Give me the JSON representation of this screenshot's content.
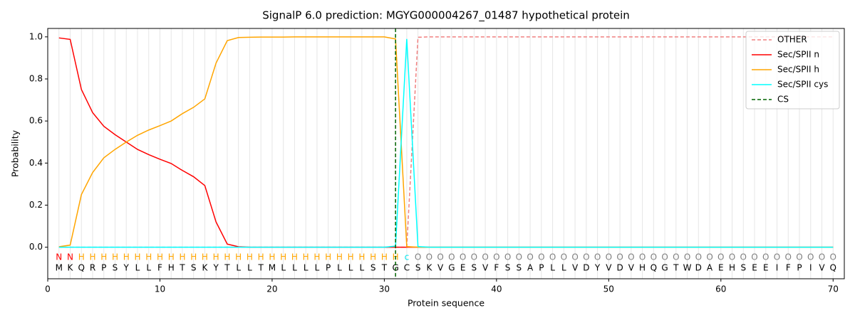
{
  "chart_data": {
    "type": "line",
    "title": "SignalP 6.0 prediction: MGYG000004267_01487 hypothetical protein",
    "x_label": "Protein sequence",
    "y_label": "Probability",
    "x": [
      1,
      2,
      3,
      4,
      5,
      6,
      7,
      8,
      9,
      10,
      11,
      12,
      13,
      14,
      15,
      16,
      17,
      18,
      19,
      20,
      21,
      22,
      23,
      24,
      25,
      26,
      27,
      28,
      29,
      30,
      31,
      32,
      33,
      34,
      35,
      36,
      37,
      38,
      39,
      40,
      41,
      42,
      43,
      44,
      45,
      46,
      47,
      48,
      49,
      50,
      51,
      52,
      53,
      54,
      55,
      56,
      57,
      58,
      59,
      60,
      61,
      62,
      63,
      64,
      65,
      66,
      67,
      68,
      69,
      70
    ],
    "sequence": [
      "M",
      "K",
      "Q",
      "R",
      "P",
      "S",
      "Y",
      "L",
      "L",
      "F",
      "H",
      "T",
      "S",
      "K",
      "Y",
      "T",
      "L",
      "L",
      "T",
      "M",
      "L",
      "L",
      "L",
      "L",
      "P",
      "L",
      "L",
      "L",
      "S",
      "T",
      "G",
      "C",
      "S",
      "K",
      "V",
      "G",
      "E",
      "S",
      "V",
      "F",
      "S",
      "S",
      "A",
      "P",
      "L",
      "L",
      "V",
      "D",
      "Y",
      "V",
      "D",
      "V",
      "H",
      "Q",
      "G",
      "T",
      "W",
      "D",
      "A",
      "E",
      "H",
      "S",
      "E",
      "E",
      "I",
      "F",
      "P",
      "I",
      "V",
      "Q"
    ],
    "region_labels": [
      "N",
      "N",
      "H",
      "H",
      "H",
      "H",
      "H",
      "H",
      "H",
      "H",
      "H",
      "H",
      "H",
      "H",
      "H",
      "H",
      "H",
      "H",
      "H",
      "H",
      "H",
      "H",
      "H",
      "H",
      "H",
      "H",
      "H",
      "H",
      "H",
      "H",
      "H",
      "c",
      "O",
      "O",
      "O",
      "O",
      "O",
      "O",
      "O",
      "O",
      "O",
      "O",
      "O",
      "O",
      "O",
      "O",
      "O",
      "O",
      "O",
      "O",
      "O",
      "O",
      "O",
      "O",
      "O",
      "O",
      "O",
      "O",
      "O",
      "O",
      "O",
      "O",
      "O",
      "O",
      "O",
      "O",
      "O",
      "O",
      "O",
      "O"
    ],
    "region_colors": {
      "N": "#ff0000",
      "H": "#ffa500",
      "c": "#00e5ee",
      "O": "#808080"
    },
    "series": [
      {
        "name": "OTHER",
        "color": "#f08080",
        "dash": true,
        "values": [
          0,
          0,
          0,
          0,
          0,
          0,
          0,
          0,
          0,
          0,
          0,
          0,
          0,
          0,
          0,
          0,
          0,
          0,
          0,
          0,
          0,
          0,
          0,
          0,
          0,
          0,
          0,
          0,
          0,
          0,
          0,
          0,
          0.998,
          1,
          1,
          1,
          1,
          1,
          1,
          1,
          1,
          1,
          1,
          1,
          1,
          1,
          1,
          1,
          1,
          1,
          1,
          1,
          1,
          1,
          1,
          1,
          1,
          1,
          1,
          1,
          1,
          1,
          1,
          1,
          1,
          1,
          1,
          1,
          1,
          1
        ]
      },
      {
        "name": "Sec/SPII n",
        "color": "#ff0000",
        "values": [
          0.995,
          0.988,
          0.75,
          0.64,
          0.575,
          0.535,
          0.5,
          0.465,
          0.44,
          0.418,
          0.398,
          0.365,
          0.335,
          0.293,
          0.12,
          0.015,
          0.002,
          0,
          0,
          0,
          0,
          0,
          0,
          0,
          0,
          0,
          0,
          0,
          0,
          0,
          0,
          0,
          0,
          0,
          0,
          0,
          0,
          0,
          0,
          0,
          0,
          0,
          0,
          0,
          0,
          0,
          0,
          0,
          0,
          0,
          0,
          0,
          0,
          0,
          0,
          0,
          0,
          0,
          0,
          0,
          0,
          0,
          0,
          0,
          0,
          0,
          0,
          0,
          0,
          0
        ]
      },
      {
        "name": "Sec/SPII h",
        "color": "#ffa500",
        "values": [
          0.002,
          0.01,
          0.25,
          0.355,
          0.425,
          0.465,
          0.5,
          0.532,
          0.557,
          0.578,
          0.6,
          0.635,
          0.665,
          0.705,
          0.875,
          0.982,
          0.997,
          0.998,
          0.999,
          0.999,
          0.999,
          1,
          1,
          1,
          1,
          1,
          1,
          1,
          1,
          1,
          0.99,
          0.003,
          0,
          0,
          0,
          0,
          0,
          0,
          0,
          0,
          0,
          0,
          0,
          0,
          0,
          0,
          0,
          0,
          0,
          0,
          0,
          0,
          0,
          0,
          0,
          0,
          0,
          0,
          0,
          0,
          0,
          0,
          0,
          0,
          0,
          0,
          0,
          0,
          0,
          0
        ]
      },
      {
        "name": "Sec/SPII cys",
        "color": "#00ffff",
        "values": [
          0,
          0,
          0,
          0,
          0,
          0,
          0,
          0,
          0,
          0,
          0,
          0,
          0,
          0,
          0,
          0,
          0,
          0,
          0,
          0,
          0,
          0,
          0,
          0,
          0,
          0,
          0,
          0,
          0,
          0,
          0.005,
          0.99,
          0.003,
          0,
          0,
          0,
          0,
          0,
          0,
          0,
          0,
          0,
          0,
          0,
          0,
          0,
          0,
          0,
          0,
          0,
          0,
          0,
          0,
          0,
          0,
          0,
          0,
          0,
          0,
          0,
          0,
          0,
          0,
          0,
          0,
          0,
          0,
          0,
          0,
          0
        ]
      }
    ],
    "cs": {
      "name": "CS",
      "color": "#006400",
      "x": 31
    },
    "xlim": [
      0,
      71
    ],
    "ylim": [
      -0.15,
      1.04
    ],
    "xticks": [
      0,
      10,
      20,
      30,
      40,
      50,
      60,
      70
    ],
    "yticks": [
      {
        "value": 0,
        "label": "0.0"
      },
      {
        "value": 0.2,
        "label": "0.2"
      },
      {
        "value": 0.4,
        "label": "0.4"
      },
      {
        "value": 0.6,
        "label": "0.6"
      },
      {
        "value": 0.8,
        "label": "0.8"
      },
      {
        "value": 1,
        "label": "1.0"
      }
    ],
    "legend": "upper right",
    "grid": "x"
  }
}
